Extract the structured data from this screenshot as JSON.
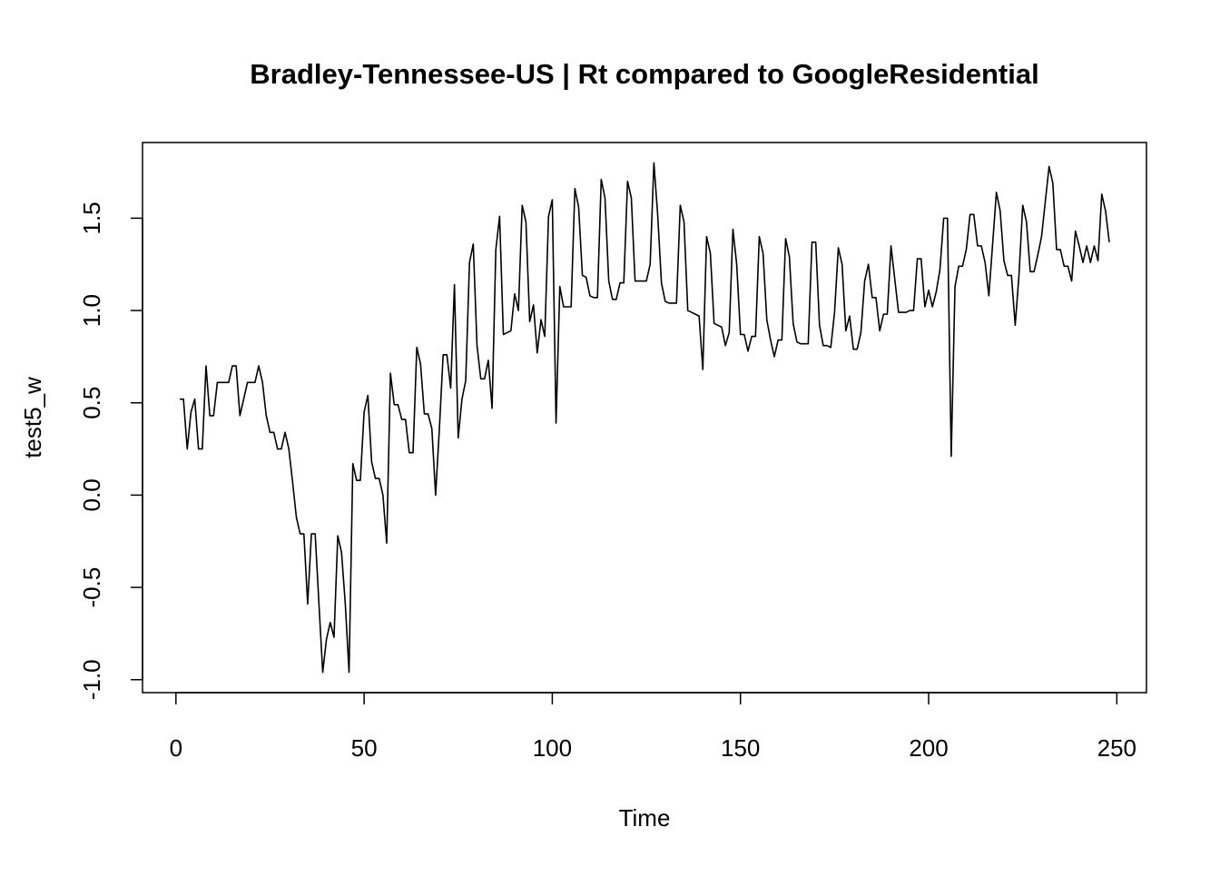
{
  "chart_data": {
    "type": "line",
    "title": "Bradley-Tennessee-US | Rt compared to GoogleResidential",
    "xlabel": "Time",
    "ylabel": "test5_w",
    "color": "#000000",
    "x": [
      1,
      2,
      3,
      4,
      5,
      6,
      7,
      8,
      9,
      10,
      11,
      12,
      13,
      14,
      15,
      16,
      17,
      18,
      19,
      20,
      21,
      22,
      23,
      24,
      25,
      26,
      27,
      28,
      29,
      30,
      31,
      32,
      33,
      34,
      35,
      36,
      37,
      38,
      39,
      40,
      41,
      42,
      43,
      44,
      45,
      46,
      47,
      48,
      49,
      50,
      51,
      52,
      53,
      54,
      55,
      56,
      57,
      58,
      59,
      60,
      61,
      62,
      63,
      64,
      65,
      66,
      67,
      68,
      69,
      70,
      71,
      72,
      73,
      74,
      75,
      76,
      77,
      78,
      79,
      80,
      81,
      82,
      83,
      84,
      85,
      86,
      87,
      88,
      89,
      90,
      91,
      92,
      93,
      94,
      95,
      96,
      97,
      98,
      99,
      100,
      101,
      102,
      103,
      104,
      105,
      106,
      107,
      108,
      109,
      110,
      111,
      112,
      113,
      114,
      115,
      116,
      117,
      118,
      119,
      120,
      121,
      122,
      123,
      124,
      125,
      126,
      127,
      128,
      129,
      130,
      131,
      132,
      133,
      134,
      135,
      136,
      137,
      138,
      139,
      140,
      141,
      142,
      143,
      144,
      145,
      146,
      147,
      148,
      149,
      150,
      151,
      152,
      153,
      154,
      155,
      156,
      157,
      158,
      159,
      160,
      161,
      162,
      163,
      164,
      165,
      166,
      167,
      168,
      169,
      170,
      171,
      172,
      173,
      174,
      175,
      176,
      177,
      178,
      179,
      180,
      181,
      182,
      183,
      184,
      185,
      186,
      187,
      188,
      189,
      190,
      191,
      192,
      193,
      194,
      195,
      196,
      197,
      198,
      199,
      200,
      201,
      202,
      203,
      204,
      205,
      206,
      207,
      208,
      209,
      210,
      211,
      212,
      213,
      214,
      215,
      216,
      217,
      218,
      219,
      220,
      221,
      222,
      223,
      224,
      225,
      226,
      227,
      228,
      229,
      230,
      231,
      232,
      233,
      234,
      235,
      236,
      237,
      238,
      239,
      240,
      241,
      242,
      243,
      244,
      245,
      246,
      247,
      248
    ],
    "values": [
      0.52,
      0.52,
      0.25,
      0.45,
      0.52,
      0.25,
      0.25,
      0.7,
      0.43,
      0.43,
      0.61,
      0.61,
      0.61,
      0.61,
      0.7,
      0.7,
      0.43,
      0.52,
      0.61,
      0.61,
      0.61,
      0.7,
      0.61,
      0.43,
      0.34,
      0.34,
      0.25,
      0.25,
      0.34,
      0.25,
      0.07,
      -0.12,
      -0.21,
      -0.21,
      -0.59,
      -0.21,
      -0.21,
      -0.59,
      -0.96,
      -0.78,
      -0.69,
      -0.77,
      -0.22,
      -0.31,
      -0.59,
      -0.96,
      0.17,
      0.08,
      0.08,
      0.45,
      0.54,
      0.18,
      0.09,
      0.09,
      0.0,
      -0.26,
      0.66,
      0.49,
      0.49,
      0.41,
      0.41,
      0.23,
      0.23,
      0.8,
      0.71,
      0.44,
      0.44,
      0.36,
      0.0,
      0.36,
      0.76,
      0.76,
      0.58,
      1.14,
      0.31,
      0.52,
      0.62,
      1.26,
      1.36,
      0.81,
      0.63,
      0.63,
      0.73,
      0.47,
      1.33,
      1.51,
      0.87,
      0.88,
      0.89,
      1.09,
      1.0,
      1.57,
      1.48,
      0.94,
      1.03,
      0.77,
      0.95,
      0.86,
      1.51,
      1.6,
      0.39,
      1.13,
      1.02,
      1.02,
      1.02,
      1.66,
      1.56,
      1.19,
      1.18,
      1.08,
      1.07,
      1.07,
      1.71,
      1.61,
      1.16,
      1.06,
      1.06,
      1.15,
      1.15,
      1.7,
      1.61,
      1.16,
      1.16,
      1.16,
      1.16,
      1.25,
      1.8,
      1.52,
      1.15,
      1.05,
      1.04,
      1.04,
      1.04,
      1.57,
      1.48,
      1.0,
      0.99,
      0.98,
      0.97,
      0.68,
      1.4,
      1.31,
      0.93,
      0.92,
      0.91,
      0.81,
      0.88,
      1.44,
      1.25,
      0.87,
      0.87,
      0.78,
      0.86,
      0.86,
      1.4,
      1.31,
      0.95,
      0.84,
      0.75,
      0.84,
      0.84,
      1.39,
      1.29,
      0.93,
      0.83,
      0.82,
      0.82,
      0.82,
      1.37,
      1.37,
      0.92,
      0.81,
      0.81,
      0.8,
      0.99,
      1.34,
      1.25,
      0.89,
      0.97,
      0.79,
      0.79,
      0.88,
      1.16,
      1.25,
      1.07,
      1.07,
      0.89,
      0.98,
      0.98,
      1.35,
      1.17,
      0.99,
      0.99,
      0.99,
      1.0,
      1.0,
      1.28,
      1.28,
      1.02,
      1.11,
      1.02,
      1.1,
      1.22,
      1.5,
      1.5,
      0.21,
      1.13,
      1.24,
      1.24,
      1.33,
      1.52,
      1.52,
      1.35,
      1.35,
      1.26,
      1.08,
      1.36,
      1.64,
      1.54,
      1.27,
      1.19,
      1.19,
      0.92,
      1.19,
      1.57,
      1.48,
      1.21,
      1.21,
      1.3,
      1.4,
      1.59,
      1.78,
      1.69,
      1.33,
      1.33,
      1.24,
      1.24,
      1.16,
      1.43,
      1.35,
      1.26,
      1.35,
      1.26,
      1.35,
      1.27,
      1.63,
      1.54,
      1.37
    ],
    "xlim": [
      -8.88,
      257.88
    ],
    "xticks": [
      0,
      50,
      100,
      150,
      200,
      250
    ],
    "ylim": [
      -1.07,
      1.91
    ],
    "yticks": [
      {
        "value": -1.0,
        "label": "-1.0"
      },
      {
        "value": -0.5,
        "label": "-0.5"
      },
      {
        "value": 0.0,
        "label": "0.0"
      },
      {
        "value": 0.5,
        "label": "0.5"
      },
      {
        "value": 1.0,
        "label": "1.0"
      },
      {
        "value": 1.5,
        "label": "1.5"
      }
    ]
  }
}
